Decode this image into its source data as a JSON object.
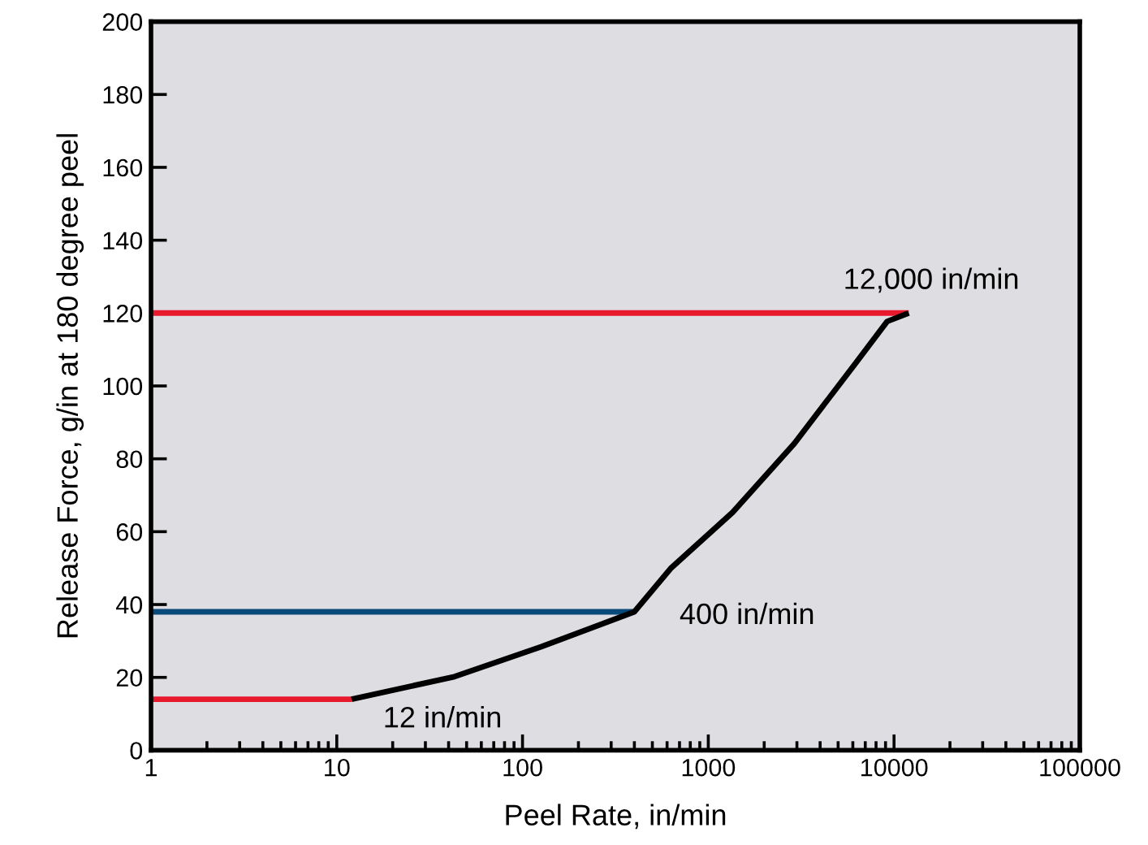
{
  "chart_data": {
    "type": "line",
    "xlabel": "Peel Rate, in/min",
    "ylabel": "Release Force, g/in at 180 degree peel",
    "log": "x",
    "xlim": [
      1,
      100000
    ],
    "xticks": [
      1,
      10,
      100,
      1000,
      10000,
      100000
    ],
    "ylim": [
      0,
      200
    ],
    "yticks": [
      0,
      20,
      40,
      60,
      80,
      100,
      120,
      140,
      160,
      180,
      200
    ],
    "grid": false,
    "marker": "none",
    "line_style": "solid",
    "series": [
      {
        "color": "#e8192c",
        "x": [
          1,
          12
        ],
        "values": [
          14,
          14
        ]
      },
      {
        "color": "#0a4a7a",
        "x": [
          1,
          400
        ],
        "values": [
          38,
          38
        ]
      },
      {
        "color": "#e8192c",
        "x": [
          1,
          12000
        ],
        "values": [
          120,
          120
        ]
      },
      {
        "color": "#000000",
        "x": [
          12,
          43,
          126,
          400,
          627,
          1352,
          2906,
          6266,
          9180,
          12000
        ],
        "values": [
          14,
          20.2,
          28.4,
          38,
          49.9,
          65.3,
          84.2,
          106.5,
          117.7,
          120
        ]
      }
    ],
    "annotations": [
      {
        "text": "12 in/min",
        "x": 12,
        "y": 14
      },
      {
        "text": "400 in/min",
        "x": 400,
        "y": 38
      },
      {
        "text": "12,000 in/min",
        "x": 12000,
        "y": 120
      }
    ]
  }
}
